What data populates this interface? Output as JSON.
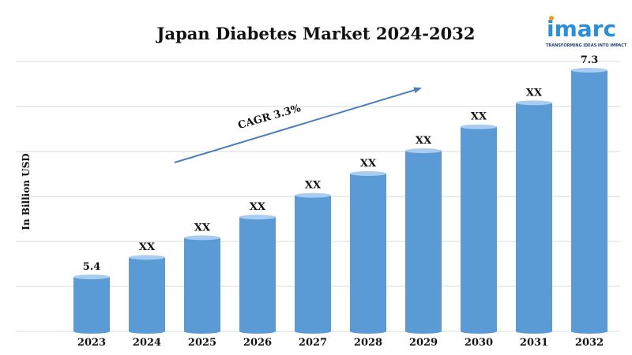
{
  "colors": {
    "bar": "#5b9bd5",
    "bar_top": "#a9cdf0",
    "arrow": "#4a7fbd",
    "grid": "#d9d9d9",
    "logo_blue": "#2a8fd6",
    "logo_orange": "#f29b2c"
  },
  "logo": {
    "word": "imarc",
    "tagline": "TRANSFORMING IDEAS INTO IMPACT"
  },
  "chart_data": {
    "type": "bar",
    "title": "Japan Diabetes Market 2024-2032",
    "ylabel": "In Billion USD",
    "xlabel": "",
    "categories": [
      "2023",
      "2024",
      "2025",
      "2026",
      "2027",
      "2028",
      "2029",
      "2030",
      "2031",
      "2032"
    ],
    "values": [
      5.4,
      5.58,
      5.76,
      5.95,
      6.15,
      6.35,
      6.56,
      6.78,
      7.0,
      7.3
    ],
    "data_labels": [
      "5.4",
      "XX",
      "XX",
      "XX",
      "XX",
      "XX",
      "XX",
      "XX",
      "XX",
      "7.3"
    ],
    "ylim": [
      4.9,
      7.38
    ],
    "grid": true,
    "annotation": "CAGR 3.3%"
  }
}
